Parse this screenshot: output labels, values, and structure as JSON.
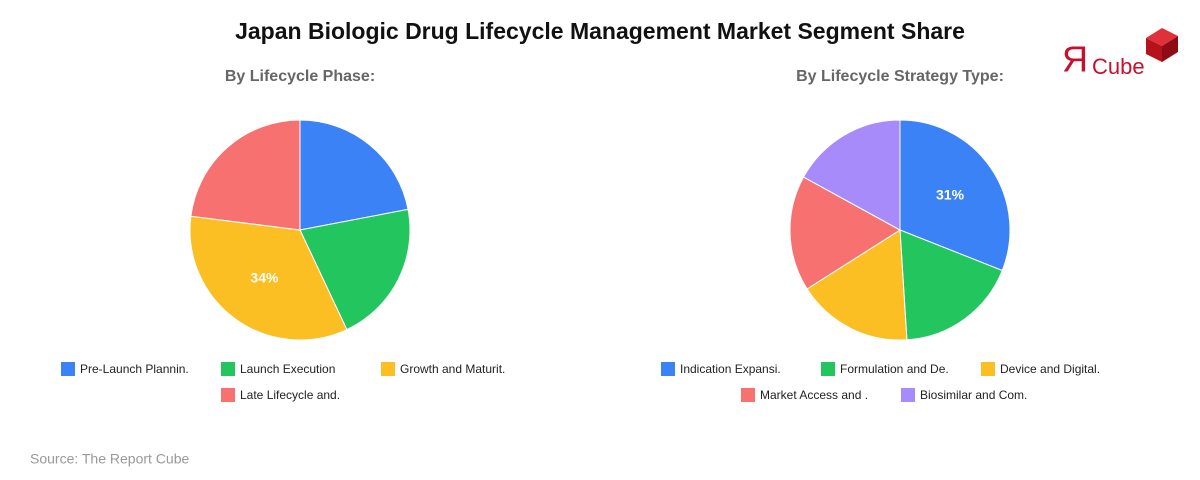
{
  "title": "Japan Biologic Drug Lifecycle Management Market Segment Share",
  "source": "Source: The Report Cube",
  "logo": {
    "mark": "Я",
    "text": "Cube"
  },
  "chart_data": [
    {
      "type": "pie",
      "title": "By Lifecycle Phase:",
      "categories": [
        "Pre-Launch Plannin.",
        "Launch Execution",
        "Growth and Maturit.",
        "Late Lifecycle and."
      ],
      "values": [
        22,
        21,
        34,
        23
      ],
      "value_labels": [
        null,
        null,
        "34%",
        null
      ],
      "colors": [
        "#3b82f6",
        "#22c55e",
        "#fbbf24",
        "#f87171"
      ]
    },
    {
      "type": "pie",
      "title": "By Lifecycle Strategy Type:",
      "categories": [
        "Indication Expansi.",
        "Formulation and De.",
        "Device and Digital.",
        "Market Access and .",
        "Biosimilar and Com."
      ],
      "values": [
        31,
        18,
        17,
        17,
        17
      ],
      "value_labels": [
        "31%",
        null,
        null,
        null,
        null
      ],
      "colors": [
        "#3b82f6",
        "#22c55e",
        "#fbbf24",
        "#f87171",
        "#a78bfa"
      ]
    }
  ]
}
